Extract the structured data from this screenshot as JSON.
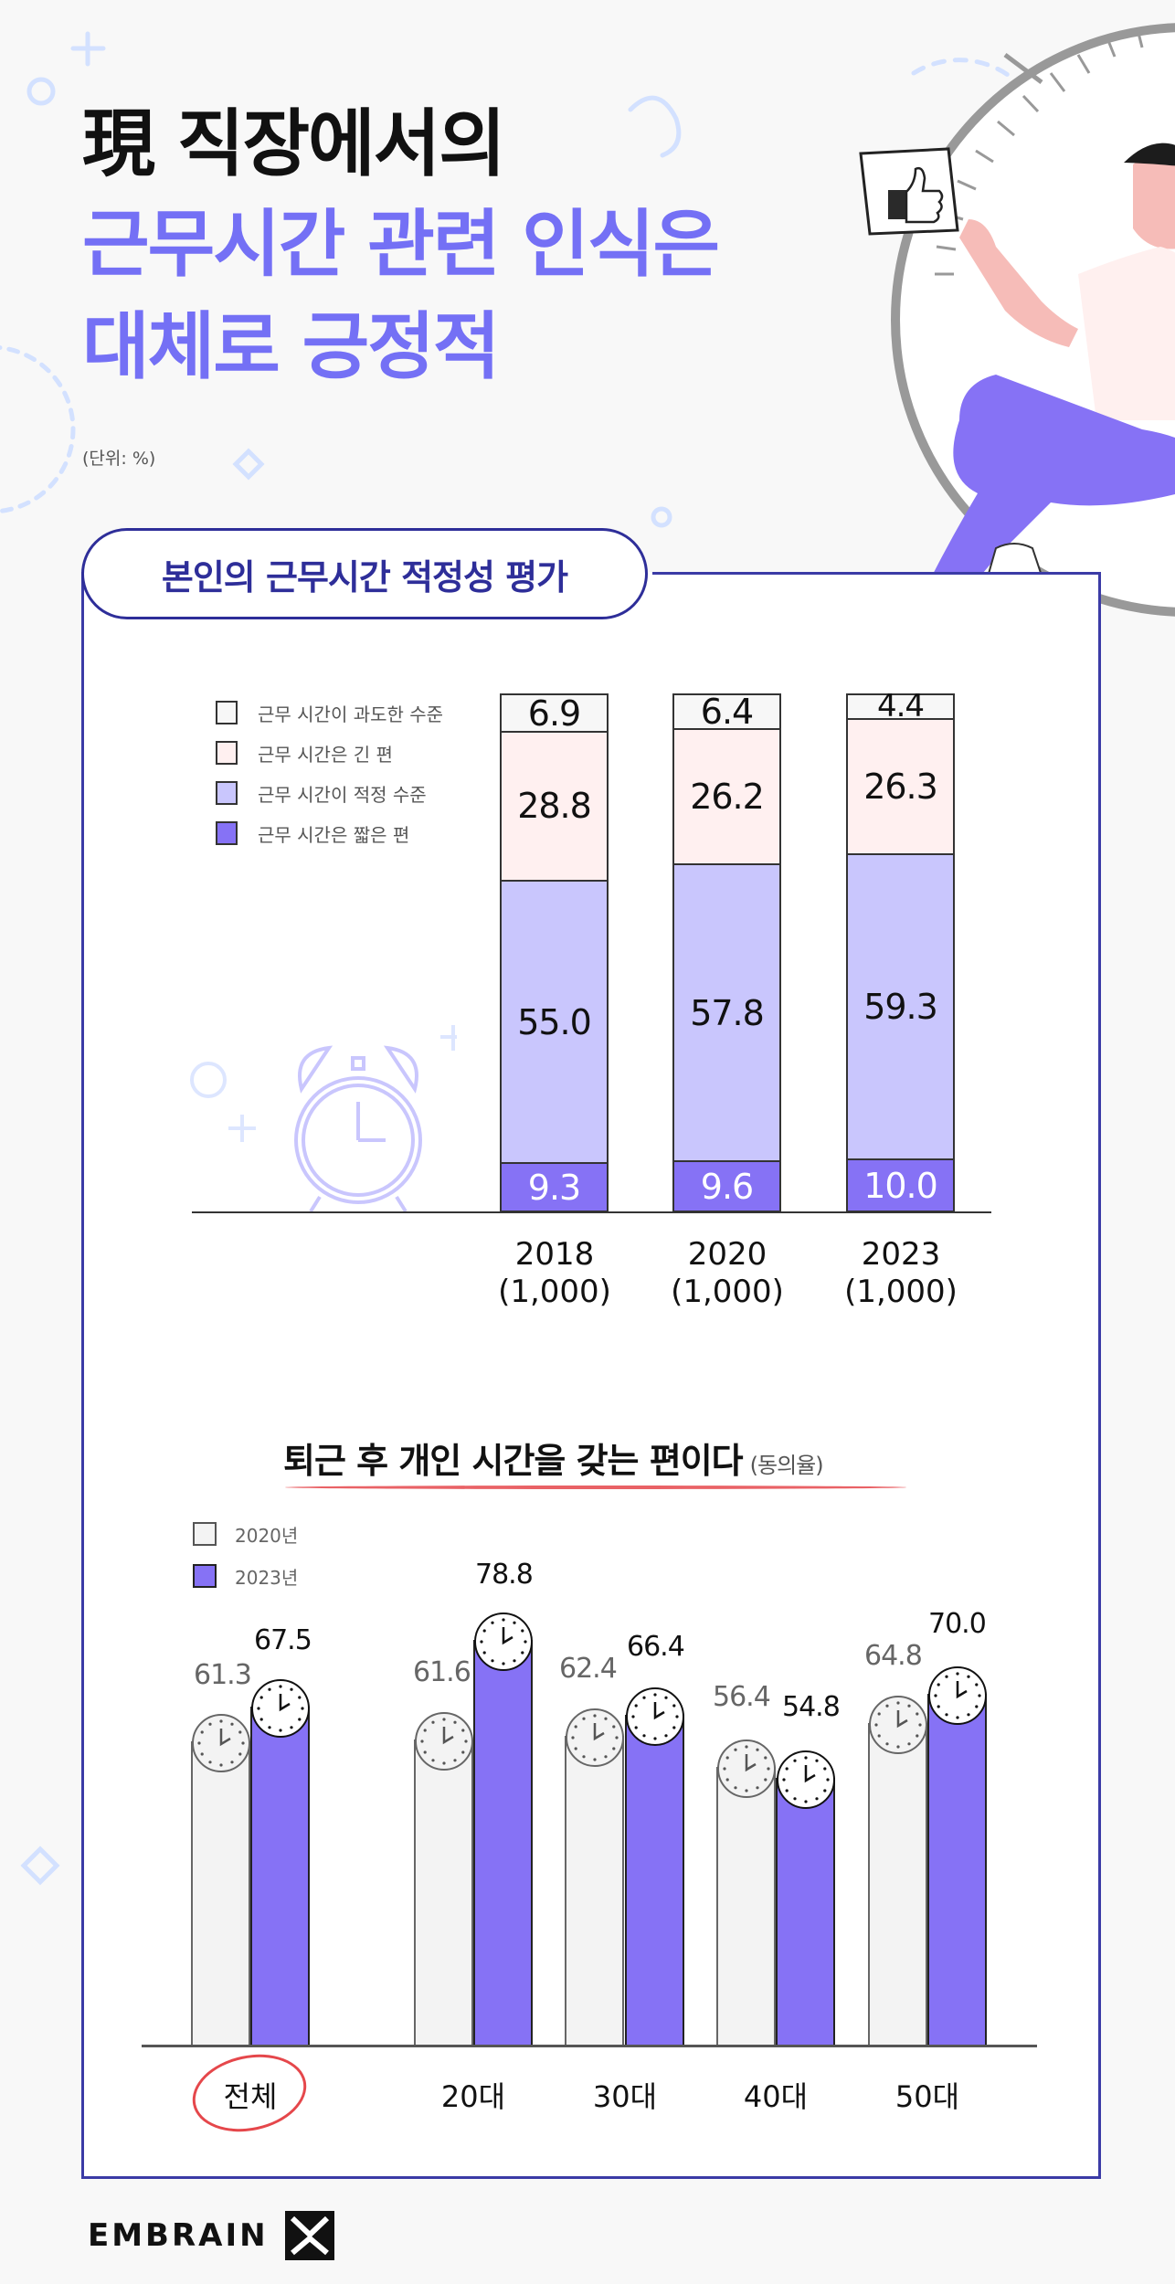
{
  "header": {
    "line1": "現 직장에서의",
    "line2": "근무시간 관련 인식은",
    "line3": "대체로 긍정적",
    "unit_note": "(단위: %)",
    "line1_color": "#111111",
    "accent_color": "#7470f5"
  },
  "section1": {
    "title": "본인의 근무시간 적정성 평가",
    "legend": [
      {
        "label": "근무 시간이 과도한 수준",
        "color": "#f7f7f7"
      },
      {
        "label": "근무 시간은 긴 편",
        "color": "#fff0f0"
      },
      {
        "label": "근무 시간이 적정 수준",
        "color": "#c9c6fd"
      },
      {
        "label": "근무 시간은 짧은 편",
        "color": "#8672f5"
      }
    ],
    "bars": [
      {
        "year": "2018",
        "n": "(1,000)",
        "excessive": "6.9",
        "long": "28.8",
        "adequate": "55.0",
        "short": "9.3"
      },
      {
        "year": "2020",
        "n": "(1,000)",
        "excessive": "6.4",
        "long": "26.2",
        "adequate": "57.8",
        "short": "9.6"
      },
      {
        "year": "2023",
        "n": "(1,000)",
        "excessive": "4.4",
        "long": "26.3",
        "adequate": "59.3",
        "short": "10.0"
      }
    ]
  },
  "section2": {
    "title": "퇴근 후 개인 시간을 갖는 편이다",
    "title_note": "(동의율)",
    "legend": [
      {
        "label": "2020년",
        "color": "#f3f3f3"
      },
      {
        "label": "2023년",
        "color": "#8672f5"
      }
    ],
    "groups": [
      {
        "label": "전체",
        "v2020": "61.3",
        "v2023": "67.5"
      },
      {
        "label": "20대",
        "v2020": "61.6",
        "v2023": "78.8"
      },
      {
        "label": "30대",
        "v2020": "62.4",
        "v2023": "66.4"
      },
      {
        "label": "40대",
        "v2020": "56.4",
        "v2023": "54.8"
      },
      {
        "label": "50대",
        "v2020": "64.8",
        "v2023": "70.0"
      }
    ]
  },
  "footer": {
    "brand": "EMBRAIN"
  },
  "chart_data": [
    {
      "type": "bar",
      "stacked": true,
      "title": "본인의 근무시간 적정성 평가",
      "unit": "%",
      "categories": [
        "2018 (1,000)",
        "2020 (1,000)",
        "2023 (1,000)"
      ],
      "series": [
        {
          "name": "근무 시간은 짧은 편",
          "values": [
            9.3,
            9.6,
            10.0
          ]
        },
        {
          "name": "근무 시간이 적정 수준",
          "values": [
            55.0,
            57.8,
            59.3
          ]
        },
        {
          "name": "근무 시간은 긴 편",
          "values": [
            28.8,
            26.2,
            26.3
          ]
        },
        {
          "name": "근무 시간이 과도한 수준",
          "values": [
            6.9,
            6.4,
            4.4
          ]
        }
      ],
      "ylim": [
        0,
        100
      ],
      "legend_position": "left",
      "grid": false
    },
    {
      "type": "bar",
      "title": "퇴근 후 개인 시간을 갖는 편이다 (동의율)",
      "unit": "%",
      "categories": [
        "전체",
        "20대",
        "30대",
        "40대",
        "50대"
      ],
      "series": [
        {
          "name": "2020년",
          "values": [
            61.3,
            61.6,
            62.4,
            56.4,
            64.8
          ]
        },
        {
          "name": "2023년",
          "values": [
            67.5,
            78.8,
            66.4,
            54.8,
            70.0
          ]
        }
      ],
      "legend_position": "top-left",
      "grid": false,
      "annotations": [
        "전체 circled in red"
      ]
    }
  ]
}
